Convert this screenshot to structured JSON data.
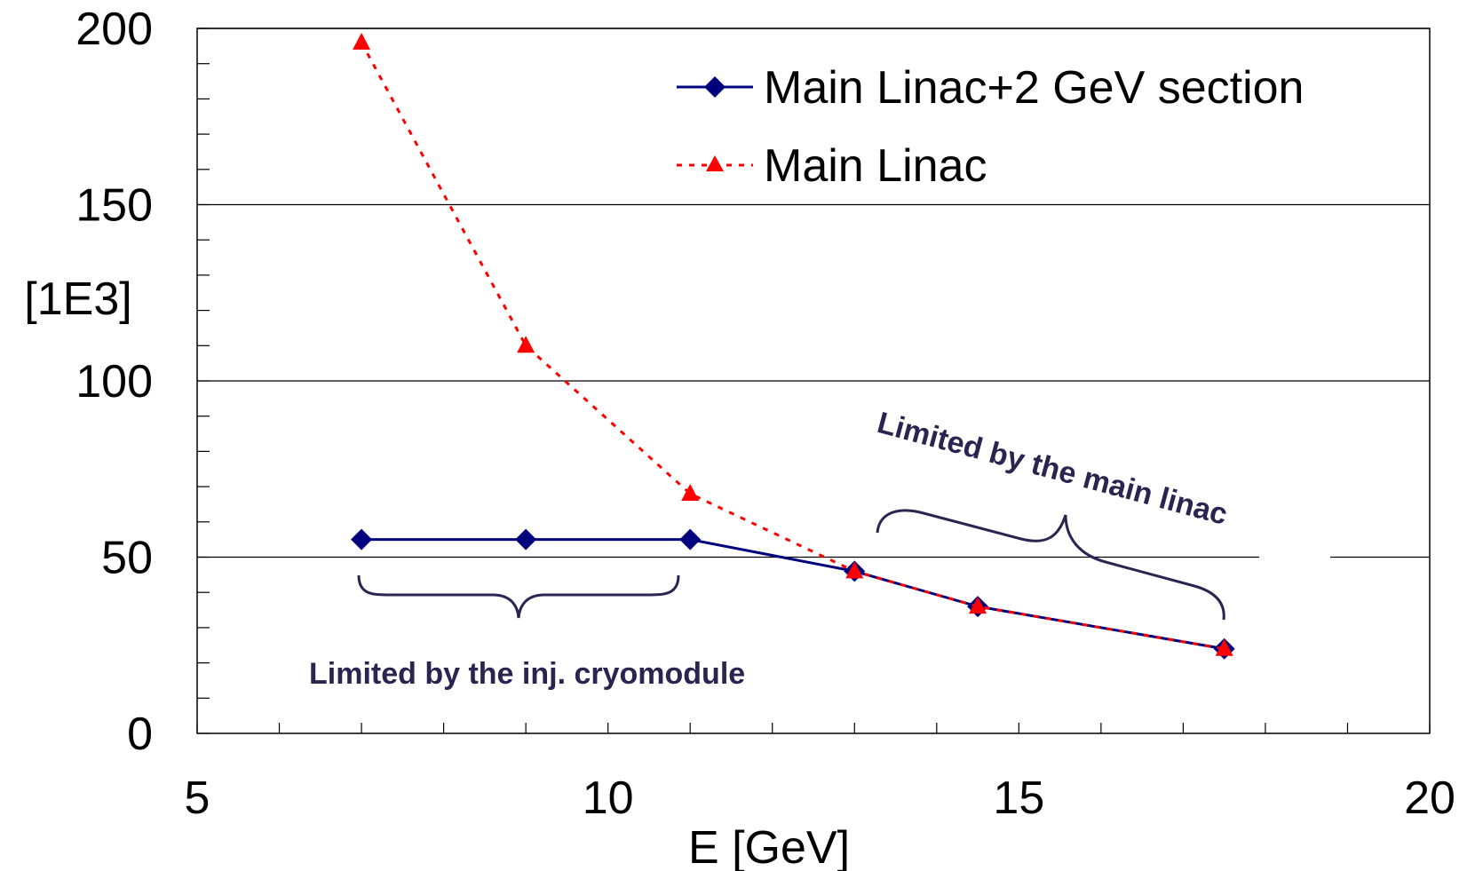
{
  "chart_data": {
    "type": "line",
    "title": "",
    "xlabel": "E [GeV]",
    "ylabel": "[1E3]",
    "xlim": [
      5,
      20
    ],
    "ylim": [
      0,
      200
    ],
    "x_ticks": [
      "5",
      "10",
      "15",
      "20"
    ],
    "y_ticks": [
      "0",
      "50",
      "100",
      "150",
      "200"
    ],
    "y_gridlines": [
      50,
      100,
      150,
      200
    ],
    "x_minor_step": 1,
    "y_minor_step": 10,
    "grid": true,
    "legend_position": "top-right",
    "series": [
      {
        "name": "Main Linac+2 GeV section",
        "color": "#00007f",
        "marker": "diamond",
        "line_style": "solid",
        "x": [
          7,
          9,
          11,
          13,
          14.5,
          17.5
        ],
        "y": [
          55,
          55,
          55,
          46,
          36,
          24
        ]
      },
      {
        "name": "Main Linac",
        "color": "#ff0000",
        "marker": "triangle",
        "line_style": "dotted",
        "x": [
          7,
          9,
          11,
          13,
          14.5,
          17.5
        ],
        "y": [
          196,
          110,
          68,
          46,
          36,
          24
        ]
      }
    ],
    "annotations": [
      {
        "text": "Limited by the inj. cryomodule"
      },
      {
        "text": "Limited by the main linac"
      }
    ]
  }
}
